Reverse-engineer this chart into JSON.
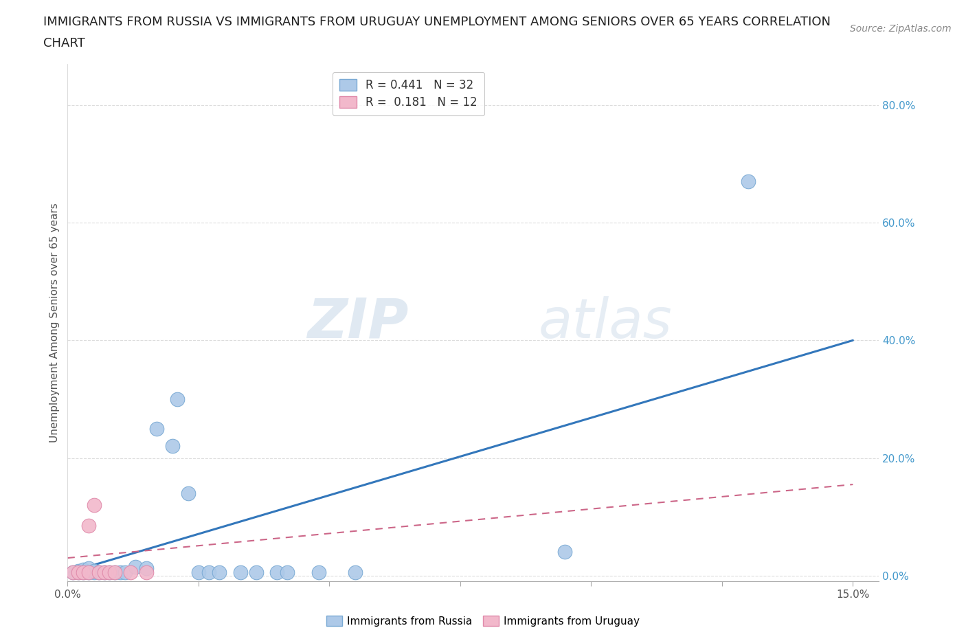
{
  "title_line1": "IMMIGRANTS FROM RUSSIA VS IMMIGRANTS FROM URUGUAY UNEMPLOYMENT AMONG SENIORS OVER 65 YEARS CORRELATION",
  "title_line2": "CHART",
  "source_text": "Source: ZipAtlas.com",
  "ylabel": "Unemployment Among Seniors over 65 years",
  "xlim": [
    0.0,
    0.155
  ],
  "ylim": [
    -0.01,
    0.87
  ],
  "russia_color": "#adc9e8",
  "russia_edge_color": "#7aaad4",
  "uruguay_color": "#f2b8cb",
  "uruguay_edge_color": "#e08aaa",
  "russia_R": "0.441",
  "russia_N": "32",
  "uruguay_R": "0.181",
  "uruguay_N": "12",
  "legend_label_russia": "Immigrants from Russia",
  "legend_label_uruguay": "Immigrants from Uruguay",
  "watermark_zip": "ZIP",
  "watermark_atlas": "atlas",
  "russia_scatter_x": [
    0.001,
    0.002,
    0.002,
    0.003,
    0.003,
    0.004,
    0.004,
    0.005,
    0.005,
    0.006,
    0.007,
    0.008,
    0.009,
    0.01,
    0.011,
    0.013,
    0.015,
    0.017,
    0.02,
    0.021,
    0.023,
    0.025,
    0.027,
    0.029,
    0.033,
    0.036,
    0.04,
    0.042,
    0.048,
    0.055,
    0.095,
    0.13
  ],
  "russia_scatter_y": [
    0.005,
    0.005,
    0.008,
    0.005,
    0.01,
    0.005,
    0.012,
    0.005,
    0.008,
    0.005,
    0.005,
    0.005,
    0.005,
    0.005,
    0.005,
    0.015,
    0.012,
    0.25,
    0.22,
    0.3,
    0.14,
    0.005,
    0.005,
    0.005,
    0.005,
    0.005,
    0.005,
    0.005,
    0.005,
    0.005,
    0.04,
    0.67
  ],
  "uruguay_scatter_x": [
    0.001,
    0.002,
    0.003,
    0.004,
    0.004,
    0.005,
    0.006,
    0.007,
    0.008,
    0.009,
    0.012,
    0.015
  ],
  "uruguay_scatter_y": [
    0.005,
    0.005,
    0.005,
    0.005,
    0.085,
    0.12,
    0.005,
    0.005,
    0.005,
    0.005,
    0.005,
    0.005
  ],
  "russia_trendline_x": [
    0.0,
    0.15
  ],
  "russia_trendline_y": [
    0.005,
    0.4
  ],
  "uruguay_trendline_x": [
    0.0,
    0.15
  ],
  "uruguay_trendline_y": [
    0.03,
    0.155
  ],
  "background_color": "#ffffff",
  "grid_color": "#dddddd",
  "ytick_vals": [
    0.0,
    0.2,
    0.4,
    0.6,
    0.8
  ],
  "ytick_labels": [
    "0.0%",
    "20.0%",
    "40.0%",
    "60.0%",
    "80.0%"
  ],
  "xtick_vals": [
    0.0,
    0.025,
    0.05,
    0.075,
    0.1,
    0.125,
    0.15
  ],
  "title_fontsize": 13,
  "source_fontsize": 10,
  "axis_label_fontsize": 11,
  "tick_fontsize": 11,
  "scatter_size": 220,
  "scatter_size_small": 140
}
